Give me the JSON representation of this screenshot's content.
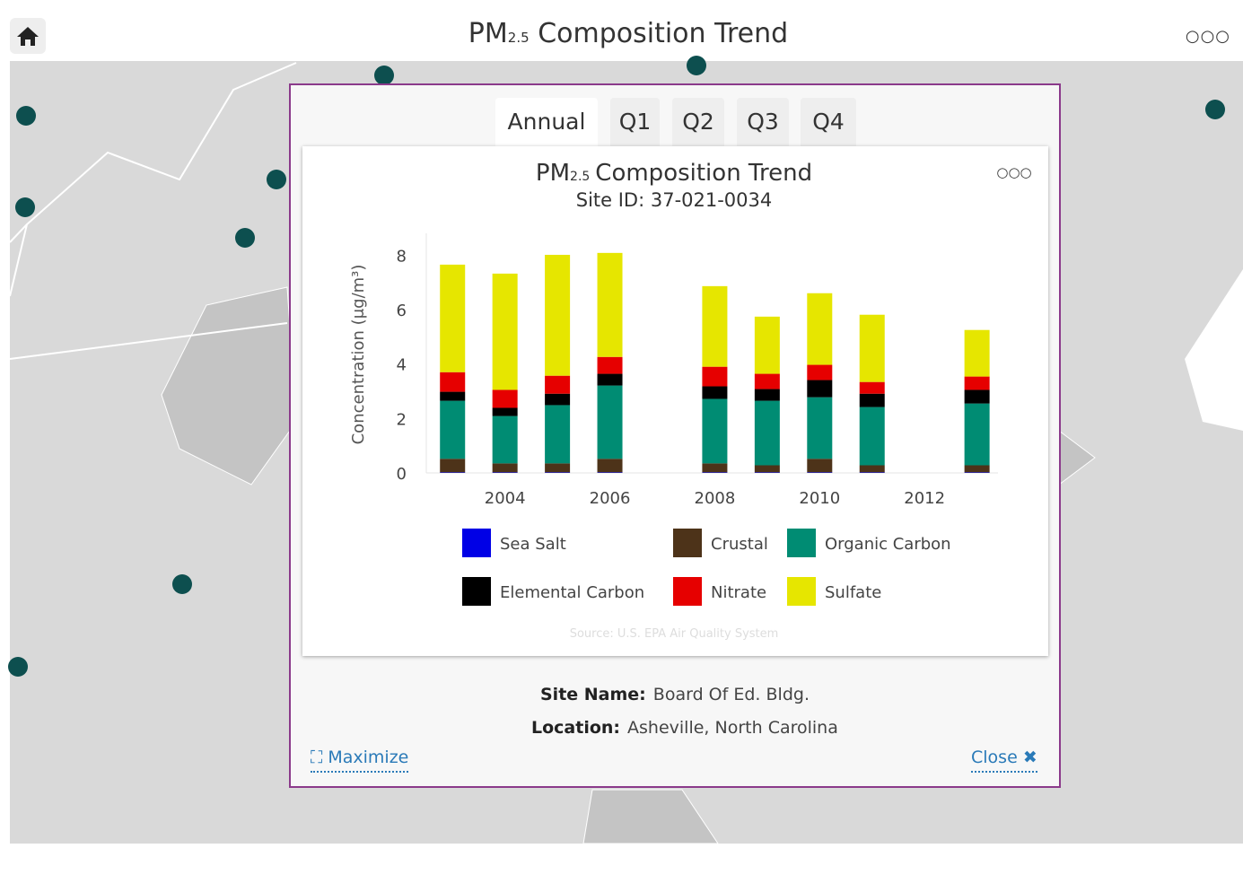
{
  "header": {
    "title": {
      "main": "PM",
      "sub": "2.5",
      "rest": "Composition Trend"
    }
  },
  "tabs": [
    "Annual",
    "Q1",
    "Q2",
    "Q3",
    "Q4"
  ],
  "chart_data": {
    "type": "bar",
    "stacked": true,
    "title": {
      "main": "PM",
      "sub": "2.5",
      "rest": "Composition Trend"
    },
    "subtitle": "Site ID: 37-021-0034",
    "y_label": "Concentration (μg/m³)",
    "x": [
      2003,
      2004,
      2005,
      2006,
      2008,
      2009,
      2010,
      2011,
      2013
    ],
    "xlim": [
      2002.5,
      2013.4
    ],
    "xticks": [
      2004,
      2006,
      2008,
      2010,
      2012
    ],
    "ylim": [
      0,
      8.8
    ],
    "yticks": [
      0,
      2,
      4,
      6,
      8
    ],
    "series": [
      {
        "name": "Sea Salt",
        "color": "#0000e6",
        "values": [
          0.02,
          0.02,
          0.02,
          0.02,
          0.02,
          0.02,
          0.02,
          0.02,
          0.02
        ]
      },
      {
        "name": "Crustal",
        "color": "#4d3319",
        "values": [
          0.5,
          0.33,
          0.33,
          0.5,
          0.33,
          0.26,
          0.5,
          0.26,
          0.26
        ]
      },
      {
        "name": "Organic Carbon",
        "color": "#008c73",
        "values": [
          2.13,
          1.74,
          2.14,
          2.69,
          2.37,
          2.37,
          2.26,
          2.14,
          2.27
        ]
      },
      {
        "name": "Elemental Carbon",
        "color": "#000000",
        "values": [
          0.33,
          0.3,
          0.42,
          0.43,
          0.46,
          0.43,
          0.63,
          0.49,
          0.5
        ]
      },
      {
        "name": "Nitrate",
        "color": "#e60000",
        "values": [
          0.72,
          0.66,
          0.66,
          0.62,
          0.72,
          0.56,
          0.56,
          0.43,
          0.49
        ]
      },
      {
        "name": "Sulfate",
        "color": "#e6e600",
        "values": [
          3.95,
          4.27,
          4.44,
          3.82,
          2.96,
          2.1,
          2.63,
          2.47,
          1.71
        ]
      }
    ],
    "source": "Source: U.S. EPA Air Quality System"
  },
  "site": {
    "name_label": "Site Name:",
    "name": "Board Of Ed. Bldg.",
    "location_label": "Location:",
    "location": "Asheville, North Carolina"
  },
  "links": {
    "maximize": "Maximize",
    "close": "Close"
  }
}
